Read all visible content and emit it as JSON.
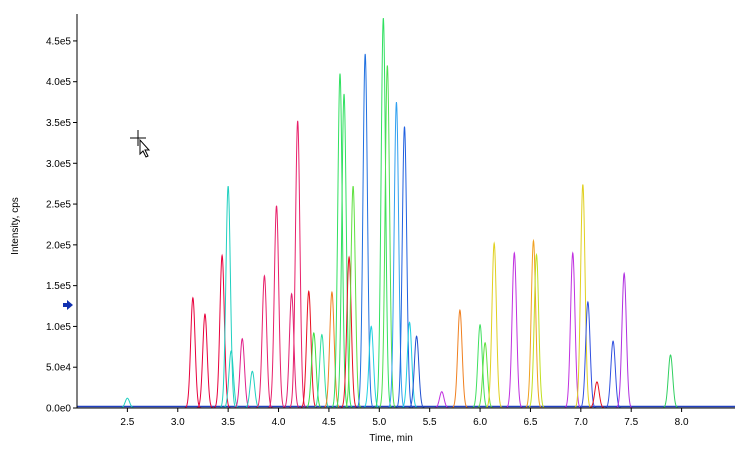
{
  "chart_data": {
    "type": "peaks",
    "x_label": "Time, min",
    "y_label": "Intensity, cps",
    "xlim": [
      2.0,
      8.53
    ],
    "ylim": [
      0,
      483000
    ],
    "xticks": [
      2.5,
      {
        "value": 3,
        "label": "3.0"
      },
      3.5,
      {
        "value": 4,
        "label": "4.0"
      },
      4.5,
      {
        "value": 5,
        "label": "5.0"
      },
      5.5,
      {
        "value": 6,
        "label": "6.0"
      },
      6.5,
      {
        "value": 7,
        "label": "7.0"
      },
      7.5,
      {
        "value": 8,
        "label": "8.0"
      }
    ],
    "yticks": [
      {
        "value": 0,
        "label": "0.0e0"
      },
      {
        "value": 50000,
        "label": "5.0e4"
      },
      {
        "value": 100000,
        "label": "1.0e5"
      },
      {
        "value": 150000,
        "label": "1.5e5"
      },
      {
        "value": 200000,
        "label": "2.0e5"
      },
      {
        "value": 250000,
        "label": "2.5e5"
      },
      {
        "value": 300000,
        "label": "3.0e5"
      },
      {
        "value": 350000,
        "label": "3.5e5"
      },
      {
        "value": 400000,
        "label": "4.0e5"
      },
      {
        "value": 450000,
        "label": "4.5e5"
      }
    ],
    "x": [
      2.5,
      3.15,
      3.27,
      3.44,
      3.5,
      3.53,
      3.64,
      3.74,
      3.86,
      3.98,
      4.13,
      4.19,
      4.3,
      4.35,
      4.43,
      4.53,
      4.61,
      4.65,
      4.7,
      4.74,
      4.86,
      4.92,
      5.04,
      5.08,
      5.17,
      5.25,
      5.3,
      5.37,
      5.62,
      5.8,
      6.0,
      6.05,
      6.14,
      6.34,
      6.53,
      6.56,
      6.92,
      7.02,
      7.07,
      7.16,
      7.32,
      7.43,
      7.89
    ],
    "values": [
      12000,
      135000,
      115000,
      187000,
      272000,
      70000,
      85000,
      45000,
      162000,
      248000,
      140000,
      352000,
      143000,
      92000,
      90000,
      142000,
      410000,
      385000,
      185000,
      272000,
      434000,
      100000,
      478000,
      420000,
      375000,
      345000,
      105000,
      88000,
      20000,
      120000,
      102000,
      80000,
      202000,
      190000,
      205000,
      188000,
      190000,
      274000,
      130000,
      32000,
      82000,
      165000,
      65000
    ],
    "colors": [
      "#20d0c0",
      "#e8003c",
      "#e8003c",
      "#e8003c",
      "#20d0c0",
      "#20d0c0",
      "#e0208a",
      "#20d0c0",
      "#e8206a",
      "#e8206a",
      "#e02070",
      "#e8206a",
      "#e81020",
      "#40e040",
      "#30e0a0",
      "#f08020",
      "#30e060",
      "#30e060",
      "#e81020",
      "#60e040",
      "#2070e0",
      "#20d0e0",
      "#30e060",
      "#50e050",
      "#30a0f0",
      "#2060e0",
      "#20d0e0",
      "#2050d0",
      "#c030e0",
      "#f08020",
      "#40e060",
      "#60e040",
      "#e0d020",
      "#c030e0",
      "#f0a020",
      "#c0e020",
      "#c030e0",
      "#e0d020",
      "#3050e0",
      "#e81020",
      "#3050e0",
      "#b030e0",
      "#30d060"
    ]
  }
}
